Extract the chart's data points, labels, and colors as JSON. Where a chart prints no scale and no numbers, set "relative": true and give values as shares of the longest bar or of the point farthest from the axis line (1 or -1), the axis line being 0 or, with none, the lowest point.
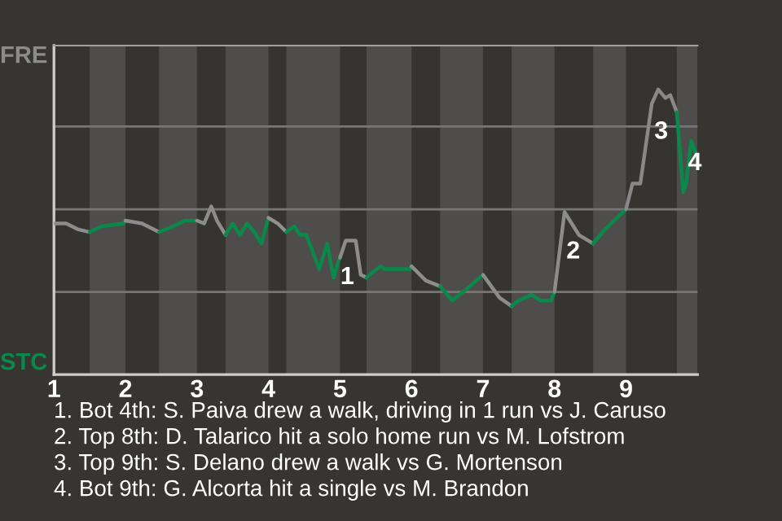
{
  "chart_data": {
    "type": "line",
    "relative": true,
    "ref_lines": [
      {
        "axis": "y",
        "value": 0.29,
        "color": "#767676"
      },
      {
        "axis": "y",
        "value": 0.58,
        "color": "#767676"
      },
      {
        "axis": "y",
        "value": 0.87,
        "color": "#767676"
      }
    ],
    "xlim": [
      1,
      10
    ],
    "xticks": [
      {
        "value": 1,
        "label": "1"
      },
      {
        "value": 2,
        "label": "2"
      },
      {
        "value": 3,
        "label": "3"
      },
      {
        "value": 4,
        "label": "4"
      },
      {
        "value": 5,
        "label": "5"
      },
      {
        "value": 6,
        "label": "6"
      },
      {
        "value": 7,
        "label": "7"
      },
      {
        "value": 8,
        "label": "8"
      },
      {
        "value": 9,
        "label": "9"
      }
    ],
    "series": [
      {
        "color": "#8c8c8c",
        "x": [
          1.0,
          1.17,
          1.33,
          1.5
        ],
        "values": [
          0.53,
          0.53,
          0.51,
          0.5
        ]
      },
      {
        "color": "#0a8a4a",
        "x": [
          1.5,
          1.67,
          1.97,
          2.0
        ],
        "values": [
          0.5,
          0.52,
          0.53,
          0.54
        ]
      },
      {
        "color": "#8c8c8c",
        "x": [
          2.0,
          2.23,
          2.47
        ],
        "values": [
          0.54,
          0.53,
          0.5
        ]
      },
      {
        "color": "#0a8a4a",
        "x": [
          2.47,
          2.67,
          2.83,
          3.0
        ],
        "values": [
          0.5,
          0.52,
          0.54,
          0.54
        ]
      },
      {
        "color": "#8c8c8c",
        "x": [
          3.0,
          3.1,
          3.2,
          3.28,
          3.4
        ],
        "values": [
          0.54,
          0.53,
          0.59,
          0.54,
          0.49
        ]
      },
      {
        "color": "#0a8a4a",
        "x": [
          3.4,
          3.5,
          3.6,
          3.7,
          3.8,
          3.9,
          4.0
        ],
        "values": [
          0.49,
          0.53,
          0.49,
          0.53,
          0.5,
          0.46,
          0.55
        ]
      },
      {
        "color": "#909090",
        "x": [
          4.0,
          4.13,
          4.25
        ],
        "values": [
          0.55,
          0.53,
          0.5
        ]
      },
      {
        "color": "#0a8a4a",
        "x": [
          4.25,
          4.36,
          4.44,
          4.53,
          4.62,
          4.71,
          4.82,
          4.91,
          4.98,
          5.0
        ],
        "values": [
          0.5,
          0.52,
          0.49,
          0.49,
          0.43,
          0.37,
          0.46,
          0.34,
          0.4,
          0.41
        ]
      },
      {
        "color": "#8c8c8c",
        "x": [
          5.0,
          5.08,
          5.22,
          5.29,
          5.37
        ],
        "values": [
          0.41,
          0.47,
          0.47,
          0.35,
          0.34
        ]
      },
      {
        "color": "#0a8a4a",
        "x": [
          5.37,
          5.46,
          5.57,
          5.62,
          5.98,
          6.0
        ],
        "values": [
          0.34,
          0.36,
          0.38,
          0.37,
          0.37,
          0.38
        ]
      },
      {
        "color": "#8c8c8c",
        "x": [
          6.0,
          6.2,
          6.4
        ],
        "values": [
          0.38,
          0.33,
          0.31
        ]
      },
      {
        "color": "#0a8a4a",
        "x": [
          6.4,
          6.57,
          6.77,
          7.0
        ],
        "values": [
          0.31,
          0.26,
          0.3,
          0.35
        ]
      },
      {
        "color": "#8c8c8c",
        "x": [
          7.0,
          7.23,
          7.4
        ],
        "values": [
          0.35,
          0.27,
          0.24
        ]
      },
      {
        "color": "#0a8a4a",
        "x": [
          7.4,
          7.5,
          7.68,
          7.8,
          7.95,
          8.0
        ],
        "values": [
          0.24,
          0.26,
          0.28,
          0.26,
          0.26,
          0.29
        ]
      },
      {
        "color": "#8c8c8c",
        "x": [
          8.0,
          8.14,
          8.34,
          8.54
        ],
        "values": [
          0.29,
          0.57,
          0.49,
          0.46
        ]
      },
      {
        "color": "#0a8a4a",
        "x": [
          8.54,
          8.71,
          9.0
        ],
        "values": [
          0.46,
          0.51,
          0.58
        ]
      },
      {
        "color": "#888888",
        "x": [
          9.0,
          9.09,
          9.2,
          9.36,
          9.45,
          9.55,
          9.62,
          9.71
        ],
        "values": [
          0.58,
          0.67,
          0.67,
          0.95,
          1.0,
          0.97,
          0.98,
          0.92
        ]
      },
      {
        "color": "#0a8a4a",
        "x": [
          9.71,
          9.8,
          9.84,
          9.91,
          10.0
        ],
        "values": [
          0.92,
          0.64,
          0.67,
          0.82,
          0.76
        ]
      }
    ],
    "bands": [
      {
        "axis": "x",
        "from": 1.5,
        "to": 2.0,
        "color": "#4e4d4b"
      },
      {
        "axis": "x",
        "from": 2.47,
        "to": 3.0,
        "color": "#4e4d4b"
      },
      {
        "axis": "x",
        "from": 3.4,
        "to": 4.0,
        "color": "#4e4d4b"
      },
      {
        "axis": "x",
        "from": 4.25,
        "to": 5.0,
        "color": "#4e4d4b"
      },
      {
        "axis": "x",
        "from": 5.37,
        "to": 6.0,
        "color": "#4e4d4b"
      },
      {
        "axis": "x",
        "from": 6.4,
        "to": 7.0,
        "color": "#4e4d4b"
      },
      {
        "axis": "x",
        "from": 7.4,
        "to": 8.0,
        "color": "#4e4d4b"
      },
      {
        "axis": "x",
        "from": 8.54,
        "to": 9.0,
        "color": "#4e4d4b"
      },
      {
        "axis": "x",
        "from": 9.71,
        "to": 10.0,
        "color": "#4e4d4b"
      }
    ],
    "annotations": [
      {
        "text": "1",
        "x": 4.91,
        "y": 0.34
      },
      {
        "text": "2",
        "x": 8.07,
        "y": 0.43
      },
      {
        "text": "3",
        "x": 9.3,
        "y": 0.85
      },
      {
        "text": "4",
        "x": 9.77,
        "y": 0.74
      },
      "FRE",
      "STC",
      "1. Bot 4th: S. Paiva drew a walk, driving in 1 run vs J. Caruso",
      "2. Top 8th: D. Talarico hit a solo home run vs M. Lofstrom",
      "3. Top 9th: S. Delano drew a walk vs G. Mortenson",
      "4. Bot 9th: G. Alcorta hit a single vs M. Brandon"
    ]
  }
}
